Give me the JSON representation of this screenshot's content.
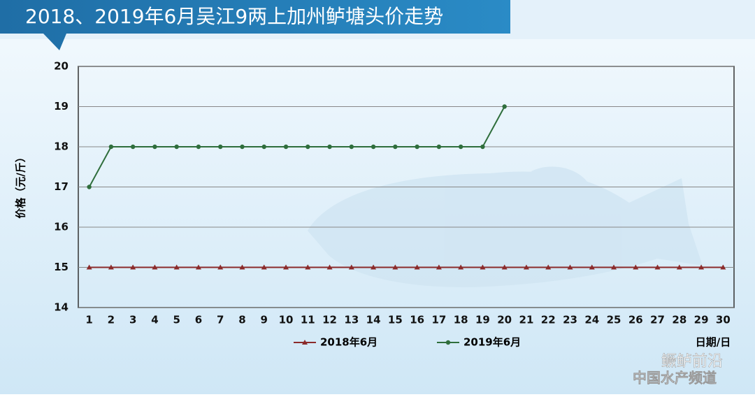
{
  "chart_data": {
    "type": "line",
    "title": "2018、2019年6月吴江9两上加州鲈塘头价走势",
    "y_label": "价格（元/斤）",
    "x_label": "日期/日",
    "categories": [
      1,
      2,
      3,
      4,
      5,
      6,
      7,
      8,
      9,
      10,
      11,
      12,
      13,
      14,
      15,
      16,
      17,
      18,
      19,
      20,
      21,
      22,
      23,
      24,
      25,
      26,
      27,
      28,
      29,
      30
    ],
    "series": [
      {
        "name": "2018年6月",
        "color": "#8b2b2b",
        "marker": "triangle",
        "values": [
          15,
          15,
          15,
          15,
          15,
          15,
          15,
          15,
          15,
          15,
          15,
          15,
          15,
          15,
          15,
          15,
          15,
          15,
          15,
          15,
          15,
          15,
          15,
          15,
          15,
          15,
          15,
          15,
          15,
          15
        ]
      },
      {
        "name": "2019年6月",
        "color": "#2f6e3c",
        "marker": "circle",
        "values": [
          17,
          18,
          18,
          18,
          18,
          18,
          18,
          18,
          18,
          18,
          18,
          18,
          18,
          18,
          18,
          18,
          18,
          18,
          18,
          19,
          null,
          null,
          null,
          null,
          null,
          null,
          null,
          null,
          null,
          null
        ]
      }
    ],
    "ylim": [
      14,
      20
    ],
    "yticks": [
      14,
      15,
      16,
      17,
      18,
      19,
      20
    ],
    "grid": true,
    "watermark": [
      "鳜鲈前沿",
      "中国水产频道"
    ]
  }
}
